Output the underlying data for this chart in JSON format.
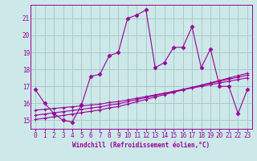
{
  "xlabel": "Windchill (Refroidissement éolien,°C)",
  "ylabel": "",
  "bg_color": "#cce8e8",
  "line_color": "#990099",
  "grid_color": "#aacccc",
  "xlim": [
    -0.5,
    23.5
  ],
  "ylim": [
    14.5,
    21.8
  ],
  "xticks": [
    0,
    1,
    2,
    3,
    4,
    5,
    6,
    7,
    8,
    9,
    10,
    11,
    12,
    13,
    14,
    15,
    16,
    17,
    18,
    19,
    20,
    21,
    22,
    23
  ],
  "yticks": [
    15,
    16,
    17,
    18,
    19,
    20,
    21
  ],
  "main_x": [
    0,
    1,
    2,
    3,
    4,
    5,
    6,
    7,
    8,
    9,
    10,
    11,
    12,
    13,
    14,
    15,
    16,
    17,
    18,
    19,
    20,
    21,
    22,
    23
  ],
  "main_y": [
    16.8,
    16.0,
    15.4,
    15.0,
    14.9,
    15.9,
    17.6,
    17.7,
    18.8,
    19.0,
    21.0,
    21.2,
    21.5,
    18.1,
    18.4,
    19.3,
    19.3,
    20.5,
    18.1,
    19.2,
    17.0,
    17.0,
    15.4,
    16.8
  ],
  "line2_x": [
    0,
    1,
    2,
    3,
    4,
    5,
    6,
    7,
    8,
    9,
    10,
    11,
    12,
    13,
    14,
    15,
    16,
    17,
    18,
    19,
    20,
    21,
    22,
    23
  ],
  "line2_y": [
    15.6,
    15.65,
    15.7,
    15.75,
    15.8,
    15.85,
    15.9,
    15.95,
    16.05,
    16.1,
    16.2,
    16.3,
    16.4,
    16.5,
    16.6,
    16.7,
    16.8,
    16.9,
    17.0,
    17.1,
    17.2,
    17.3,
    17.4,
    17.5
  ],
  "line3_x": [
    0,
    1,
    2,
    3,
    4,
    5,
    6,
    7,
    8,
    9,
    10,
    11,
    12,
    13,
    14,
    15,
    16,
    17,
    18,
    19,
    20,
    21,
    22,
    23
  ],
  "line3_y": [
    15.3,
    15.37,
    15.44,
    15.51,
    15.58,
    15.65,
    15.72,
    15.79,
    15.9,
    15.97,
    16.1,
    16.22,
    16.34,
    16.46,
    16.58,
    16.7,
    16.82,
    16.94,
    17.06,
    17.18,
    17.3,
    17.42,
    17.54,
    17.66
  ],
  "line4_x": [
    0,
    1,
    2,
    3,
    4,
    5,
    6,
    7,
    8,
    9,
    10,
    11,
    12,
    13,
    14,
    15,
    16,
    17,
    18,
    19,
    20,
    21,
    22,
    23
  ],
  "line4_y": [
    15.05,
    15.13,
    15.21,
    15.29,
    15.37,
    15.45,
    15.53,
    15.61,
    15.73,
    15.81,
    15.95,
    16.09,
    16.23,
    16.37,
    16.51,
    16.65,
    16.79,
    16.93,
    17.07,
    17.21,
    17.35,
    17.49,
    17.63,
    17.77
  ]
}
